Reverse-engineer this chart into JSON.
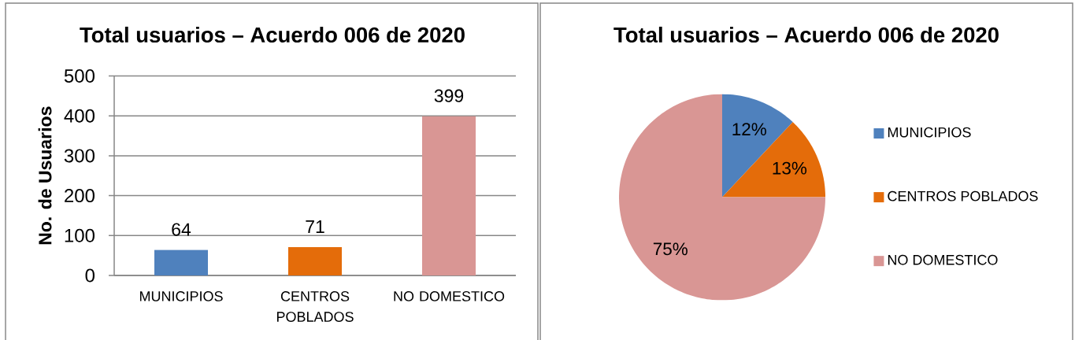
{
  "chart_data": [
    {
      "type": "bar",
      "title": "Total usuarios – Acuerdo 006 de 2020",
      "ylabel": "No. de Usuarios",
      "categories": [
        "MUNICIPIOS",
        "CENTROS POBLADOS",
        "NO DOMESTICO"
      ],
      "values": [
        64,
        71,
        399
      ],
      "colors": [
        "#4f81bd",
        "#e46c0a",
        "#d99694"
      ],
      "ylim": [
        0,
        500
      ],
      "yticks": [
        0,
        100,
        200,
        300,
        400,
        500
      ],
      "grid": "y",
      "data_labels": true
    },
    {
      "type": "pie",
      "title": "Total usuarios – Acuerdo 006 de 2020",
      "categories": [
        "MUNICIPIOS",
        "CENTROS POBLADOS",
        "NO DOMESTICO"
      ],
      "values": [
        12,
        13,
        75
      ],
      "colors": [
        "#4f81bd",
        "#e46c0a",
        "#d99694"
      ],
      "value_labels": [
        "12%",
        "13%",
        "75%"
      ],
      "legend": "right"
    }
  ]
}
